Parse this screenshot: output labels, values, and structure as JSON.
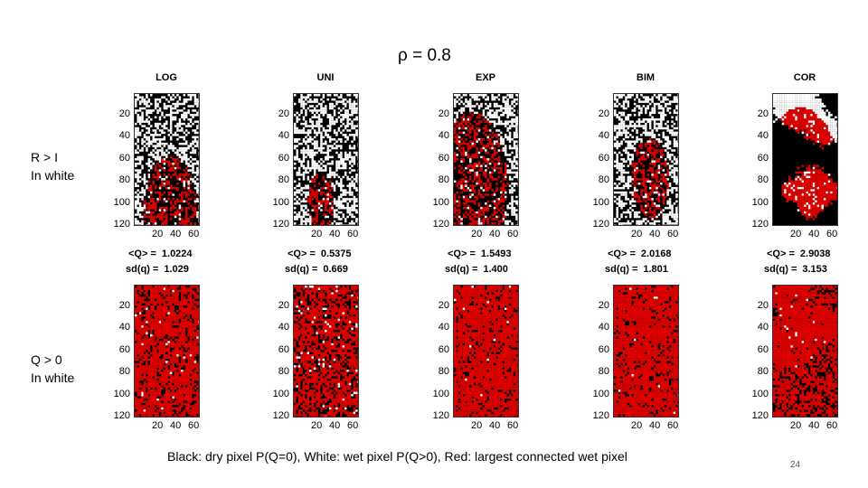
{
  "title": "ρ = 0.8",
  "row_labels": {
    "top": {
      "line1": "R > I",
      "line2": "In white"
    },
    "bottom": {
      "line1": "Q > 0",
      "line2": "In white"
    }
  },
  "y_ticks": [
    "20",
    "40",
    "60",
    "80",
    "100",
    "120"
  ],
  "x_ticks": [
    "20",
    "40",
    "60"
  ],
  "stat_labels": {
    "mean": "<Q> =",
    "sd": "sd(q) ="
  },
  "panels": [
    {
      "name": "LOG",
      "mean": "1.0224",
      "sd": "1.029",
      "top_red_fraction": 0.12,
      "bottom_red_fraction": 0.75
    },
    {
      "name": "UNI",
      "mean": "0.5375",
      "sd": "0.669",
      "top_red_fraction": 0.03,
      "bottom_red_fraction": 0.6
    },
    {
      "name": "EXP",
      "mean": "1.5493",
      "sd": "1.400",
      "top_red_fraction": 0.22,
      "bottom_red_fraction": 0.85
    },
    {
      "name": "BIM",
      "mean": "2.0168",
      "sd": "1.801",
      "top_red_fraction": 0.06,
      "bottom_red_fraction": 0.85
    },
    {
      "name": "COR",
      "mean": "2.9038",
      "sd": "3.153",
      "top_red_fraction": 0.35,
      "bottom_red_fraction": 0.75
    }
  ],
  "caption": "Black: dry pixel P(Q=0), White: wet pixel P(Q>0),  Red: largest connected wet pixel",
  "page_number": "24",
  "colors": {
    "dry": "#000000",
    "wet": "#ffffff",
    "connected": "#e00000"
  }
}
